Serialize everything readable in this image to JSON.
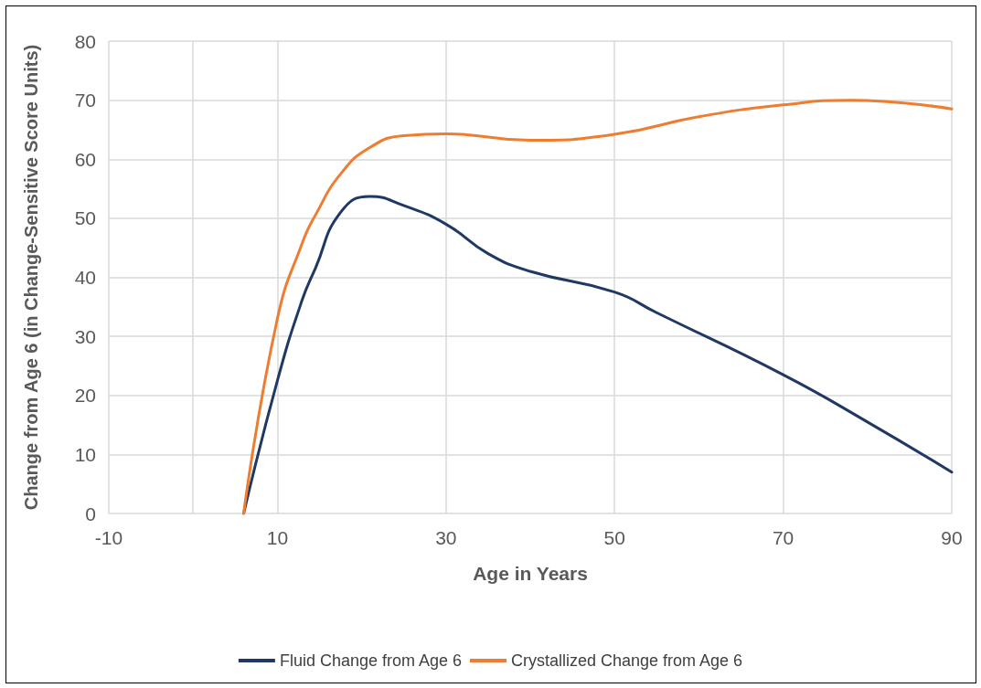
{
  "chart_data": {
    "type": "line",
    "xlabel": "Age in Years",
    "ylabel": "Change from Age 6 (in Change-Sensitive Score Units)",
    "xlim": [
      -10,
      90
    ],
    "xticks": [
      -10,
      {
        "value": 0,
        "label": null
      },
      10,
      30,
      50,
      70,
      90
    ],
    "ylim": [
      0,
      80
    ],
    "yticks": [
      0,
      10,
      20,
      30,
      40,
      50,
      60,
      70,
      80
    ],
    "grid": true,
    "legend": "bottom",
    "marker": "none",
    "line_style": "solid",
    "series": [
      {
        "name": "Fluid Change from Age 6",
        "color": "#203864",
        "x": [
          6,
          10,
          12.9,
          14.5,
          17.5,
          21,
          24.9,
          30,
          35,
          40,
          50,
          55,
          70,
          80,
          90
        ],
        "values": [
          0,
          22.5,
          36,
          41.5,
          51,
          53.7,
          52.2,
          49,
          44,
          41,
          37.5,
          34,
          23.5,
          15.5,
          7
        ]
      },
      {
        "name": "Crystallized Change from Age 6",
        "color": "#ed7d31",
        "x": [
          6,
          10,
          13,
          14.5,
          17.5,
          21,
          25,
          30,
          40,
          50,
          60,
          70,
          78,
          90
        ],
        "values": [
          0,
          33,
          46,
          50.5,
          57.5,
          62,
          64,
          64.3,
          63.2,
          64.2,
          67.2,
          69.2,
          70,
          68.5
        ]
      }
    ]
  }
}
